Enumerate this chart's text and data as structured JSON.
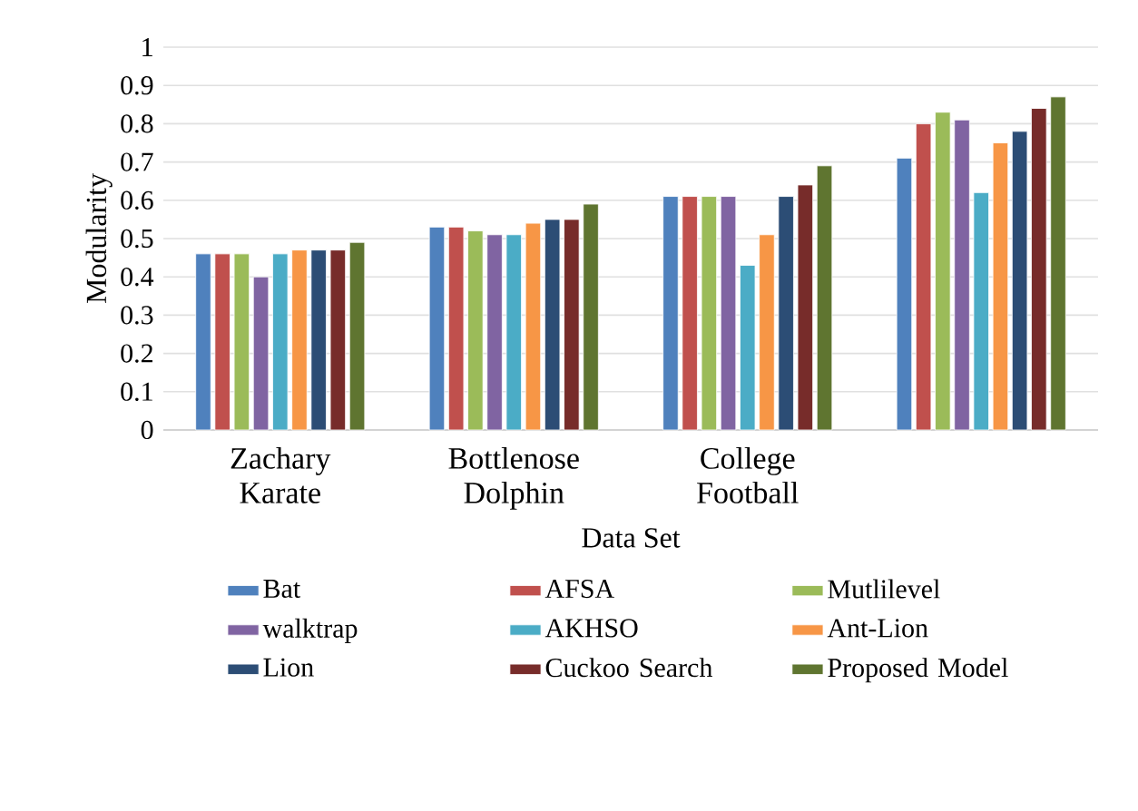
{
  "chart_data": {
    "type": "bar",
    "xlabel": "Data Set",
    "ylabel": "Modularity",
    "categories": [
      "Zachary Karate",
      "Bottlenose Dolphin",
      "College Football",
      null
    ],
    "series": [
      {
        "name": "Bat",
        "color": "#4f81bd",
        "values": [
          0.46,
          0.53,
          0.61,
          0.71
        ]
      },
      {
        "name": "AFSA",
        "color": "#c0504d",
        "values": [
          0.46,
          0.53,
          0.61,
          0.8
        ]
      },
      {
        "name": "Mutlilevel",
        "color": "#9bbb59",
        "values": [
          0.46,
          0.52,
          0.61,
          0.83
        ]
      },
      {
        "name": "walktrap",
        "color": "#8064a2",
        "values": [
          0.4,
          0.51,
          0.61,
          0.81
        ]
      },
      {
        "name": "AKHSO",
        "color": "#4bacc6",
        "values": [
          0.46,
          0.51,
          0.43,
          0.62
        ]
      },
      {
        "name": "Ant-Lion",
        "color": "#f79646",
        "values": [
          0.47,
          0.54,
          0.51,
          0.75
        ]
      },
      {
        "name": "Lion",
        "color": "#2c4d75",
        "values": [
          0.47,
          0.55,
          0.61,
          0.78
        ]
      },
      {
        "name": "Cuckoo Search",
        "color": "#772c2a",
        "values": [
          0.47,
          0.55,
          0.64,
          0.84
        ]
      },
      {
        "name": "Proposed Model",
        "color": "#5f7530",
        "values": [
          0.49,
          0.59,
          0.69,
          0.87
        ]
      }
    ],
    "ylim": [
      0,
      1
    ],
    "yticks": [
      0,
      0.1,
      0.2,
      0.3,
      0.4,
      0.5,
      0.6,
      0.7,
      0.8,
      0.9,
      1
    ],
    "grid": "y",
    "legend": "bottom"
  }
}
